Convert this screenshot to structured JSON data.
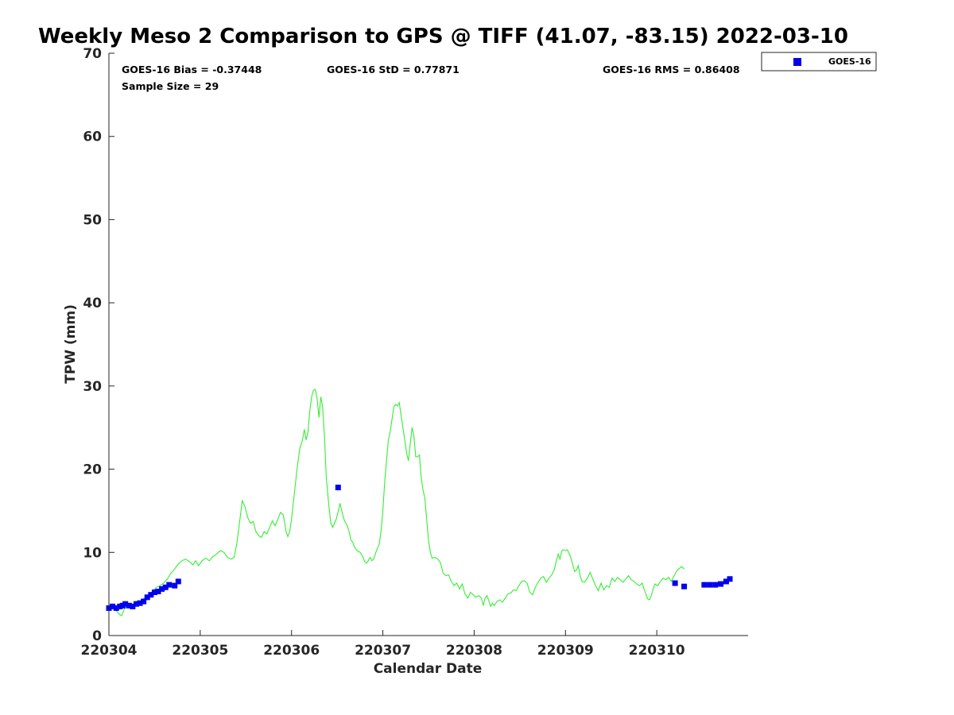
{
  "chart_data": {
    "type": "line",
    "title": "Weekly Meso 2 Comparison to GPS @ TIFF (41.07, -83.15) 2022-03-10",
    "xlabel": "Calendar Date",
    "ylabel": "TPW (mm)",
    "xlim": [
      0,
      7
    ],
    "ylim": [
      0,
      70
    ],
    "x_ticks": [
      {
        "value": 0,
        "label": "220304"
      },
      {
        "value": 1,
        "label": "220305"
      },
      {
        "value": 2,
        "label": "220306"
      },
      {
        "value": 3,
        "label": "220307"
      },
      {
        "value": 4,
        "label": "220308"
      },
      {
        "value": 5,
        "label": "220309"
      },
      {
        "value": 6,
        "label": "220310"
      }
    ],
    "y_ticks": [
      0,
      10,
      20,
      30,
      40,
      50,
      60,
      70
    ],
    "grid": false,
    "legend_position": "top-right, outside plot",
    "stats": {
      "bias": "GOES-16 Bias = -0.37448",
      "std": "GOES-16 StD = 0.77871",
      "rms": "GOES-16 RMS = 0.86408",
      "sample": "Sample Size = 29"
    },
    "series": [
      {
        "name": "GPS",
        "style": "line",
        "color": "#33ee33",
        "points": [
          [
            0.0,
            3.2
          ],
          [
            0.04,
            3.3
          ],
          [
            0.08,
            3.0
          ],
          [
            0.12,
            2.5
          ],
          [
            0.14,
            2.4
          ],
          [
            0.17,
            3.2
          ],
          [
            0.2,
            3.5
          ],
          [
            0.24,
            3.8
          ],
          [
            0.28,
            3.6
          ],
          [
            0.32,
            3.9
          ],
          [
            0.36,
            4.3
          ],
          [
            0.4,
            4.6
          ],
          [
            0.44,
            4.9
          ],
          [
            0.48,
            5.3
          ],
          [
            0.52,
            5.8
          ],
          [
            0.56,
            6.0
          ],
          [
            0.6,
            6.3
          ],
          [
            0.64,
            6.8
          ],
          [
            0.68,
            7.5
          ],
          [
            0.72,
            8.0
          ],
          [
            0.76,
            8.6
          ],
          [
            0.8,
            9.0
          ],
          [
            0.84,
            9.2
          ],
          [
            0.88,
            8.9
          ],
          [
            0.92,
            8.5
          ],
          [
            0.95,
            9.0
          ],
          [
            0.98,
            8.4
          ],
          [
            1.02,
            9.0
          ],
          [
            1.06,
            9.3
          ],
          [
            1.1,
            9.0
          ],
          [
            1.14,
            9.5
          ],
          [
            1.18,
            9.8
          ],
          [
            1.22,
            10.2
          ],
          [
            1.26,
            10.0
          ],
          [
            1.3,
            9.4
          ],
          [
            1.34,
            9.2
          ],
          [
            1.37,
            9.4
          ],
          [
            1.4,
            11.0
          ],
          [
            1.43,
            13.5
          ],
          [
            1.46,
            16.2
          ],
          [
            1.49,
            15.5
          ],
          [
            1.52,
            14.2
          ],
          [
            1.55,
            13.5
          ],
          [
            1.58,
            13.7
          ],
          [
            1.61,
            12.5
          ],
          [
            1.64,
            12.0
          ],
          [
            1.67,
            11.8
          ],
          [
            1.7,
            12.5
          ],
          [
            1.73,
            12.2
          ],
          [
            1.76,
            13.0
          ],
          [
            1.79,
            13.8
          ],
          [
            1.82,
            13.2
          ],
          [
            1.85,
            14.0
          ],
          [
            1.88,
            14.8
          ],
          [
            1.91,
            14.5
          ],
          [
            1.94,
            12.5
          ],
          [
            1.96,
            11.9
          ],
          [
            1.98,
            12.5
          ],
          [
            2.0,
            14.0
          ],
          [
            2.03,
            17.0
          ],
          [
            2.06,
            20.0
          ],
          [
            2.09,
            22.5
          ],
          [
            2.12,
            23.5
          ],
          [
            2.14,
            24.8
          ],
          [
            2.16,
            23.5
          ],
          [
            2.18,
            24.5
          ],
          [
            2.2,
            27.0
          ],
          [
            2.22,
            28.7
          ],
          [
            2.24,
            29.5
          ],
          [
            2.26,
            29.6
          ],
          [
            2.28,
            28.5
          ],
          [
            2.3,
            26.2
          ],
          [
            2.32,
            28.7
          ],
          [
            2.34,
            27.5
          ],
          [
            2.36,
            24.0
          ],
          [
            2.38,
            19.0
          ],
          [
            2.41,
            15.5
          ],
          [
            2.43,
            13.5
          ],
          [
            2.45,
            13.0
          ],
          [
            2.47,
            13.5
          ],
          [
            2.49,
            14.0
          ],
          [
            2.51,
            14.9
          ],
          [
            2.53,
            15.9
          ],
          [
            2.55,
            15.0
          ],
          [
            2.57,
            14.1
          ],
          [
            2.59,
            13.6
          ],
          [
            2.61,
            13.2
          ],
          [
            2.63,
            12.5
          ],
          [
            2.65,
            11.5
          ],
          [
            2.67,
            11.2
          ],
          [
            2.69,
            10.6
          ],
          [
            2.72,
            10.2
          ],
          [
            2.75,
            10.0
          ],
          [
            2.78,
            9.5
          ],
          [
            2.8,
            8.9
          ],
          [
            2.82,
            8.7
          ],
          [
            2.84,
            9.0
          ],
          [
            2.86,
            9.4
          ],
          [
            2.88,
            9.0
          ],
          [
            2.9,
            9.2
          ],
          [
            2.93,
            10.2
          ],
          [
            2.96,
            11.0
          ],
          [
            2.98,
            12.5
          ],
          [
            3.0,
            15.0
          ],
          [
            3.02,
            18.5
          ],
          [
            3.04,
            21.0
          ],
          [
            3.06,
            23.5
          ],
          [
            3.08,
            24.5
          ],
          [
            3.1,
            26.0
          ],
          [
            3.12,
            27.5
          ],
          [
            3.14,
            27.8
          ],
          [
            3.16,
            27.6
          ],
          [
            3.18,
            28.0
          ],
          [
            3.2,
            26.5
          ],
          [
            3.22,
            25.0
          ],
          [
            3.24,
            23.5
          ],
          [
            3.26,
            22.0
          ],
          [
            3.28,
            21.0
          ],
          [
            3.3,
            23.0
          ],
          [
            3.32,
            25.0
          ],
          [
            3.34,
            24.0
          ],
          [
            3.36,
            21.5
          ],
          [
            3.38,
            21.5
          ],
          [
            3.4,
            21.7
          ],
          [
            3.42,
            19.0
          ],
          [
            3.44,
            17.5
          ],
          [
            3.46,
            16.5
          ],
          [
            3.48,
            14.0
          ],
          [
            3.5,
            11.5
          ],
          [
            3.52,
            10.0
          ],
          [
            3.54,
            9.3
          ],
          [
            3.57,
            9.4
          ],
          [
            3.6,
            9.2
          ],
          [
            3.63,
            8.8
          ],
          [
            3.66,
            7.5
          ],
          [
            3.69,
            7.2
          ],
          [
            3.72,
            7.3
          ],
          [
            3.75,
            6.5
          ],
          [
            3.78,
            6.0
          ],
          [
            3.81,
            6.3
          ],
          [
            3.84,
            5.6
          ],
          [
            3.87,
            6.2
          ],
          [
            3.9,
            5.0
          ],
          [
            3.93,
            4.5
          ],
          [
            3.96,
            5.2
          ],
          [
            3.99,
            4.9
          ],
          [
            4.02,
            4.6
          ],
          [
            4.05,
            4.8
          ],
          [
            4.08,
            4.5
          ],
          [
            4.1,
            3.6
          ],
          [
            4.12,
            4.5
          ],
          [
            4.14,
            4.8
          ],
          [
            4.16,
            4.2
          ],
          [
            4.18,
            3.5
          ],
          [
            4.2,
            3.9
          ],
          [
            4.22,
            3.6
          ],
          [
            4.25,
            4.1
          ],
          [
            4.28,
            4.3
          ],
          [
            4.31,
            4.0
          ],
          [
            4.34,
            4.5
          ],
          [
            4.37,
            5.0
          ],
          [
            4.4,
            5.1
          ],
          [
            4.43,
            5.5
          ],
          [
            4.46,
            5.4
          ],
          [
            4.49,
            6.0
          ],
          [
            4.52,
            6.5
          ],
          [
            4.55,
            6.6
          ],
          [
            4.58,
            6.3
          ],
          [
            4.61,
            5.2
          ],
          [
            4.64,
            4.9
          ],
          [
            4.67,
            5.8
          ],
          [
            4.7,
            6.4
          ],
          [
            4.73,
            6.9
          ],
          [
            4.76,
            7.1
          ],
          [
            4.79,
            6.4
          ],
          [
            4.82,
            6.9
          ],
          [
            4.85,
            7.3
          ],
          [
            4.88,
            8.0
          ],
          [
            4.9,
            9.0
          ],
          [
            4.92,
            9.8
          ],
          [
            4.94,
            9.2
          ],
          [
            4.96,
            10.2
          ],
          [
            4.98,
            10.3
          ],
          [
            5.0,
            10.2
          ],
          [
            5.02,
            10.3
          ],
          [
            5.04,
            9.9
          ],
          [
            5.06,
            9.3
          ],
          [
            5.08,
            8.5
          ],
          [
            5.1,
            7.7
          ],
          [
            5.12,
            7.9
          ],
          [
            5.14,
            8.4
          ],
          [
            5.16,
            7.2
          ],
          [
            5.18,
            6.5
          ],
          [
            5.21,
            6.4
          ],
          [
            5.24,
            6.9
          ],
          [
            5.27,
            7.6
          ],
          [
            5.3,
            6.8
          ],
          [
            5.33,
            6.0
          ],
          [
            5.36,
            5.4
          ],
          [
            5.39,
            6.3
          ],
          [
            5.42,
            5.5
          ],
          [
            5.45,
            6.0
          ],
          [
            5.48,
            5.8
          ],
          [
            5.51,
            6.9
          ],
          [
            5.54,
            6.5
          ],
          [
            5.57,
            7.0
          ],
          [
            5.6,
            6.7
          ],
          [
            5.63,
            6.4
          ],
          [
            5.66,
            6.8
          ],
          [
            5.69,
            7.2
          ],
          [
            5.72,
            6.7
          ],
          [
            5.75,
            6.5
          ],
          [
            5.78,
            6.2
          ],
          [
            5.81,
            6.0
          ],
          [
            5.84,
            6.3
          ],
          [
            5.86,
            5.6
          ],
          [
            5.88,
            5.0
          ],
          [
            5.9,
            4.4
          ],
          [
            5.92,
            4.3
          ],
          [
            5.94,
            4.8
          ],
          [
            5.96,
            5.6
          ],
          [
            5.98,
            6.2
          ],
          [
            6.01,
            6.0
          ],
          [
            6.04,
            6.5
          ],
          [
            6.07,
            6.9
          ],
          [
            6.1,
            6.7
          ],
          [
            6.13,
            7.0
          ],
          [
            6.16,
            6.5
          ],
          [
            6.19,
            7.2
          ],
          [
            6.22,
            7.8
          ],
          [
            6.25,
            8.1
          ],
          [
            6.27,
            8.3
          ],
          [
            6.3,
            8.0
          ]
        ]
      },
      {
        "name": "GOES-16",
        "style": "marker",
        "color": "#0000ee",
        "points": [
          [
            0.0,
            3.3
          ],
          [
            0.04,
            3.5
          ],
          [
            0.08,
            3.3
          ],
          [
            0.12,
            3.5
          ],
          [
            0.15,
            3.6
          ],
          [
            0.18,
            3.8
          ],
          [
            0.22,
            3.6
          ],
          [
            0.26,
            3.5
          ],
          [
            0.3,
            3.8
          ],
          [
            0.34,
            3.9
          ],
          [
            0.38,
            4.1
          ],
          [
            0.42,
            4.6
          ],
          [
            0.46,
            4.9
          ],
          [
            0.5,
            5.2
          ],
          [
            0.54,
            5.3
          ],
          [
            0.58,
            5.6
          ],
          [
            0.62,
            5.8
          ],
          [
            0.66,
            6.1
          ],
          [
            0.72,
            6.0
          ],
          [
            0.76,
            6.5
          ],
          [
            2.51,
            17.8
          ],
          [
            6.2,
            6.3
          ],
          [
            6.3,
            5.9
          ],
          [
            6.52,
            6.1
          ],
          [
            6.58,
            6.1
          ],
          [
            6.64,
            6.1
          ],
          [
            6.7,
            6.2
          ],
          [
            6.76,
            6.5
          ],
          [
            6.8,
            6.8
          ]
        ]
      }
    ]
  }
}
